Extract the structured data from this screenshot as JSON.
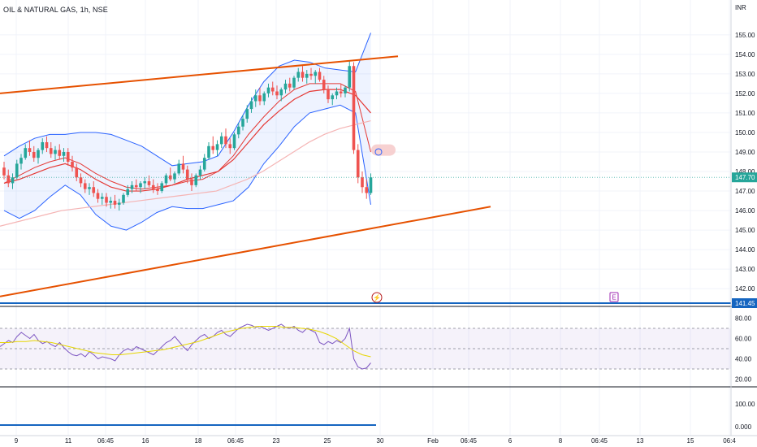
{
  "header": {
    "symbol_title": "OIL & NATURAL GAS, 1h, NSE",
    "currency": "INR"
  },
  "colors": {
    "candle_up": "#26a69a",
    "candle_down": "#ef5350",
    "bollinger": "#2962ff",
    "ma_short": "#e53935",
    "ma_long": "#f5b4b4",
    "channel": "#e65100",
    "rsi_line": "#7e57c2",
    "rsi_ma": "#e6d600",
    "horizontal_line": "#1565c0"
  },
  "markers": {
    "event_icon": "lightning-icon",
    "earnings_icon": "E"
  },
  "chart_data": {
    "type": "candlestick",
    "title": "",
    "x_ticks": [
      "9",
      "11",
      "06:45",
      "16",
      "18",
      "06:45",
      "23",
      "25",
      "30",
      "Feb",
      "06:45",
      "6",
      "8",
      "06:45",
      "13",
      "15",
      "06:4"
    ],
    "y_axis": {
      "unit": "INR",
      "ticks": [
        "155.00",
        "154.00",
        "153.00",
        "152.00",
        "151.00",
        "150.00",
        "149.00",
        "148.00",
        "147.00",
        "146.00",
        "145.00",
        "144.00",
        "143.00",
        "142.00"
      ],
      "range": [
        141.3,
        155.7
      ],
      "last_price": "147.70",
      "horizontal_line_label": "141.45"
    },
    "candles_ohlc": [
      [
        148.2,
        148.5,
        147.6,
        147.8
      ],
      [
        147.8,
        148.1,
        147.2,
        147.4
      ],
      [
        147.4,
        147.9,
        147.1,
        147.7
      ],
      [
        147.7,
        148.6,
        147.6,
        148.4
      ],
      [
        148.4,
        148.9,
        148.1,
        148.7
      ],
      [
        148.7,
        149.4,
        148.6,
        149.2
      ],
      [
        149.2,
        149.6,
        148.8,
        149.0
      ],
      [
        149.0,
        149.3,
        148.5,
        148.7
      ],
      [
        148.7,
        149.2,
        148.4,
        149.1
      ],
      [
        149.1,
        149.7,
        148.9,
        149.5
      ],
      [
        149.5,
        149.8,
        149.0,
        149.2
      ],
      [
        149.2,
        149.5,
        148.7,
        148.9
      ],
      [
        148.9,
        149.3,
        148.6,
        149.1
      ],
      [
        149.1,
        149.4,
        148.6,
        148.8
      ],
      [
        148.8,
        149.2,
        148.5,
        149.0
      ],
      [
        149.0,
        149.2,
        148.3,
        148.5
      ],
      [
        148.5,
        148.8,
        148.0,
        148.2
      ],
      [
        148.2,
        148.4,
        147.5,
        147.7
      ],
      [
        147.7,
        147.9,
        147.2,
        147.4
      ],
      [
        147.4,
        147.6,
        146.9,
        147.1
      ],
      [
        147.1,
        147.4,
        146.8,
        147.2
      ],
      [
        147.2,
        147.5,
        146.7,
        146.9
      ],
      [
        146.9,
        147.1,
        146.4,
        146.6
      ],
      [
        146.6,
        146.9,
        146.3,
        146.7
      ],
      [
        146.7,
        146.9,
        146.2,
        146.4
      ],
      [
        146.4,
        146.7,
        146.1,
        146.5
      ],
      [
        146.5,
        146.8,
        146.1,
        146.3
      ],
      [
        146.3,
        146.6,
        146.0,
        146.4
      ],
      [
        146.4,
        146.9,
        146.3,
        146.8
      ],
      [
        146.8,
        147.3,
        146.7,
        147.1
      ],
      [
        147.1,
        147.5,
        146.9,
        147.3
      ],
      [
        147.3,
        147.6,
        147.0,
        147.2
      ],
      [
        147.2,
        147.5,
        146.9,
        147.4
      ],
      [
        147.4,
        147.7,
        147.1,
        147.5
      ],
      [
        147.5,
        147.8,
        147.2,
        147.3
      ],
      [
        147.3,
        147.6,
        146.9,
        147.1
      ],
      [
        147.1,
        147.4,
        146.8,
        147.0
      ],
      [
        147.0,
        147.5,
        146.9,
        147.4
      ],
      [
        147.4,
        147.9,
        147.3,
        147.8
      ],
      [
        147.8,
        148.2,
        147.5,
        147.6
      ],
      [
        147.6,
        148.0,
        147.4,
        147.9
      ],
      [
        147.9,
        148.6,
        147.8,
        148.4
      ],
      [
        148.4,
        148.8,
        147.9,
        148.1
      ],
      [
        148.1,
        148.3,
        147.4,
        147.6
      ],
      [
        147.6,
        147.9,
        147.0,
        147.3
      ],
      [
        147.3,
        147.9,
        147.2,
        147.8
      ],
      [
        147.8,
        148.3,
        147.6,
        148.1
      ],
      [
        148.1,
        148.9,
        148.0,
        148.7
      ],
      [
        148.7,
        149.5,
        148.6,
        149.3
      ],
      [
        149.3,
        149.8,
        148.9,
        149.1
      ],
      [
        149.1,
        149.6,
        148.8,
        149.4
      ],
      [
        149.4,
        150.0,
        149.2,
        149.8
      ],
      [
        149.8,
        150.2,
        149.2,
        149.4
      ],
      [
        149.4,
        149.7,
        148.9,
        149.2
      ],
      [
        149.2,
        150.0,
        149.1,
        149.9
      ],
      [
        149.9,
        150.5,
        149.7,
        150.3
      ],
      [
        150.3,
        150.9,
        150.1,
        150.7
      ],
      [
        150.7,
        151.4,
        150.5,
        151.2
      ],
      [
        151.2,
        151.8,
        151.0,
        151.6
      ],
      [
        151.6,
        152.2,
        151.3,
        151.9
      ],
      [
        151.9,
        152.3,
        151.4,
        151.6
      ],
      [
        151.6,
        152.1,
        151.4,
        152.0
      ],
      [
        152.0,
        152.5,
        151.8,
        152.3
      ],
      [
        152.3,
        152.6,
        151.9,
        152.1
      ],
      [
        152.1,
        152.4,
        151.7,
        151.9
      ],
      [
        151.9,
        152.3,
        151.6,
        152.2
      ],
      [
        152.2,
        152.7,
        152.0,
        152.5
      ],
      [
        152.5,
        152.8,
        152.1,
        152.3
      ],
      [
        152.3,
        152.9,
        152.2,
        152.8
      ],
      [
        152.8,
        153.3,
        152.6,
        153.1
      ],
      [
        153.1,
        153.4,
        152.6,
        152.8
      ],
      [
        152.8,
        153.2,
        152.5,
        153.0
      ],
      [
        153.0,
        153.3,
        152.7,
        152.9
      ],
      [
        152.9,
        153.2,
        152.5,
        153.1
      ],
      [
        153.1,
        153.3,
        152.6,
        152.7
      ],
      [
        152.7,
        152.9,
        152.0,
        152.2
      ],
      [
        152.2,
        152.4,
        151.5,
        151.7
      ],
      [
        151.7,
        152.0,
        151.4,
        151.9
      ],
      [
        151.9,
        152.3,
        151.7,
        152.1
      ],
      [
        152.1,
        152.5,
        151.8,
        152.0
      ],
      [
        152.0,
        152.4,
        151.8,
        152.3
      ],
      [
        152.3,
        153.7,
        152.1,
        153.4
      ],
      [
        153.4,
        153.6,
        148.9,
        149.1
      ],
      [
        149.1,
        149.4,
        147.4,
        147.7
      ],
      [
        147.7,
        148.0,
        146.9,
        147.2
      ],
      [
        147.2,
        147.6,
        146.6,
        146.9
      ],
      [
        146.9,
        147.9,
        146.8,
        147.7
      ]
    ],
    "bollinger": {
      "upper": [
        148.8,
        149.3,
        149.7,
        149.9,
        149.9,
        150.0,
        150.0,
        149.9,
        149.6,
        149.3,
        148.8,
        148.3,
        148.4,
        148.5,
        148.8,
        150.0,
        151.4,
        152.6,
        153.4,
        153.7,
        153.6,
        153.3,
        153.2,
        153.1,
        155.1
      ],
      "middle": [
        147.4,
        147.8,
        148.2,
        148.5,
        148.7,
        148.4,
        147.9,
        147.5,
        147.2,
        147.1,
        147.2,
        147.3,
        147.5,
        147.6,
        148.0,
        148.8,
        149.9,
        150.8,
        151.6,
        152.2,
        152.5,
        152.5,
        152.5,
        152.1,
        149.0
      ],
      "lower": [
        146.0,
        145.6,
        146.0,
        146.7,
        147.3,
        146.8,
        145.8,
        145.2,
        145.0,
        145.4,
        145.9,
        146.2,
        146.1,
        146.1,
        146.3,
        146.5,
        147.2,
        148.4,
        149.3,
        150.3,
        151.0,
        151.2,
        151.4,
        151.0,
        146.3
      ]
    },
    "ma_short": [
      147.4,
      147.6,
      147.9,
      148.2,
      148.4,
      148.1,
      147.6,
      147.2,
      147.0,
      147.0,
      147.1,
      147.3,
      147.6,
      147.8,
      148.0,
      148.6,
      149.5,
      150.4,
      151.1,
      151.7,
      152.1,
      152.2,
      152.2,
      151.9,
      151.0
    ],
    "ma_long": [
      145.2,
      145.4,
      145.6,
      145.8,
      146.0,
      146.1,
      146.2,
      146.3,
      146.4,
      146.5,
      146.6,
      146.7,
      146.8,
      146.9,
      147.0,
      147.3,
      147.6,
      148.0,
      148.5,
      149.0,
      149.5,
      149.9,
      150.2,
      150.4,
      150.6
    ],
    "channel": {
      "upper": {
        "from": [
          0,
          152.0
        ],
        "to": [
          122,
          153.9
        ]
      },
      "lower": {
        "from": [
          0,
          141.6
        ],
        "to": [
          150,
          146.2
        ]
      }
    },
    "rsi": {
      "y_ticks": [
        "80.00",
        "60.00",
        "40.00",
        "20.00"
      ],
      "range": [
        14,
        90
      ],
      "bands": [
        70,
        50,
        30
      ],
      "values": [
        52,
        55,
        58,
        56,
        62,
        66,
        63,
        60,
        64,
        58,
        55,
        57,
        54,
        52,
        56,
        51,
        47,
        44,
        43,
        45,
        42,
        47,
        44,
        40,
        42,
        41,
        40,
        38,
        44,
        48,
        50,
        48,
        52,
        50,
        48,
        46,
        44,
        48,
        52,
        56,
        58,
        62,
        57,
        52,
        48,
        54,
        58,
        62,
        64,
        60,
        62,
        66,
        68,
        64,
        62,
        66,
        70,
        72,
        74,
        73,
        71,
        72,
        70,
        68,
        70,
        72,
        74,
        71,
        70,
        72,
        68,
        66,
        70,
        68,
        66,
        56,
        54,
        57,
        55,
        58,
        56,
        60,
        70,
        40,
        32,
        30,
        31,
        36
      ],
      "ma": [
        56,
        56,
        57,
        57,
        58,
        57,
        56,
        54,
        52,
        50,
        48,
        46,
        45,
        44,
        44,
        45,
        46,
        47,
        48,
        49,
        51,
        53,
        55,
        57,
        60,
        63,
        66,
        68,
        70,
        71,
        72,
        72,
        72,
        71,
        71,
        70,
        69,
        67,
        64,
        60,
        54,
        48,
        44,
        42
      ]
    },
    "third_pane": {
      "y_ticks": [
        "100.00",
        "0.000"
      ]
    }
  }
}
